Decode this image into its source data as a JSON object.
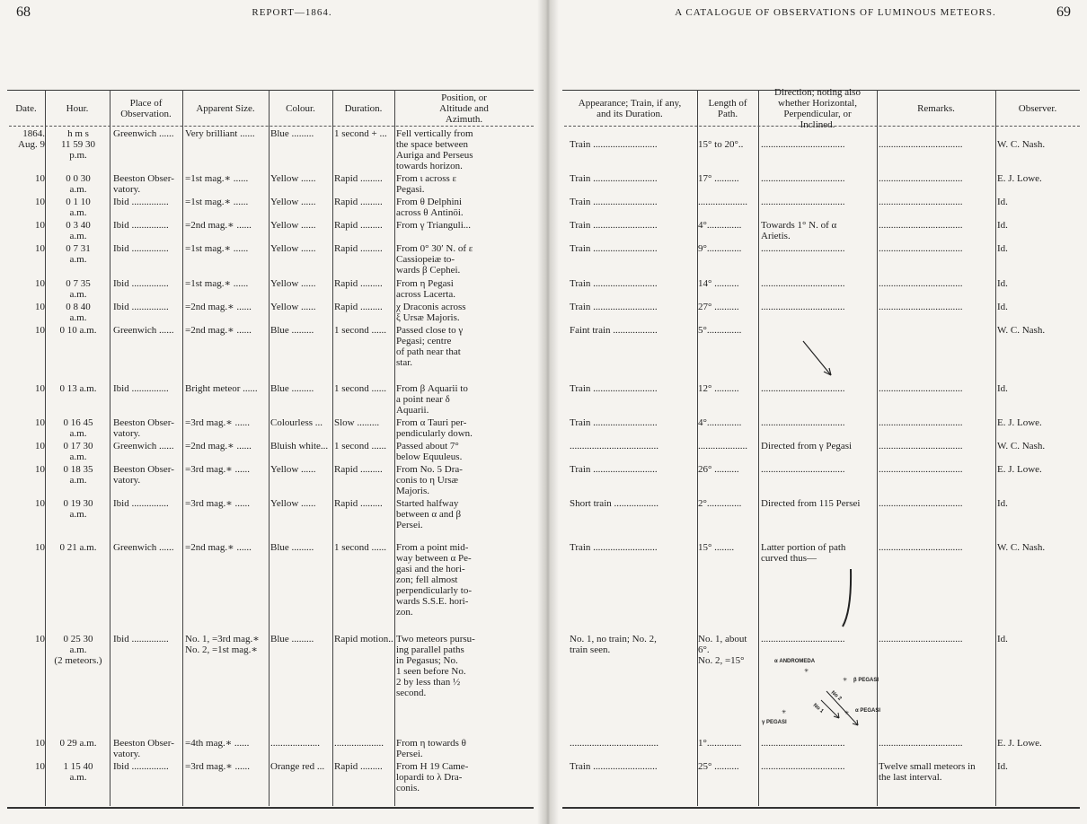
{
  "left_page": {
    "page_number": "68",
    "running_head": "REPORT—1864.",
    "headers": [
      "Date.",
      "Hour.",
      "Place of\nObservation.",
      "Apparent Size.",
      "Colour.",
      "Duration.",
      "Position, or\nAltitude and\nAzimuth."
    ],
    "rows": [
      {
        "date": "1864.\nAug. 9",
        "hour": "h  m  s\n11 59 30\np.m.",
        "place": "Greenwich ......",
        "size": "Very brilliant ......",
        "colour": "Blue  .........",
        "duration": "1 second + ...",
        "position": "Fell vertically from\nthe space between\nAuriga and Perseus\ntowards horizon."
      },
      {
        "date": "10",
        "hour": "0  0 30\na.m.",
        "place": "Beeston Obser-\nvatory.",
        "size": "=1st mag.∗ ......",
        "colour": "Yellow ......",
        "duration": "Rapid .........",
        "position": "From ι across ε\nPegasi."
      },
      {
        "date": "10",
        "hour": "0  1 10\na.m.",
        "place": "Ibid ...............",
        "size": "=1st mag.∗ ......",
        "colour": "Yellow ......",
        "duration": "Rapid .........",
        "position": "From θ Delphini\nacross θ Antinöi."
      },
      {
        "date": "10",
        "hour": "0  3 40\na.m.",
        "place": "Ibid ...............",
        "size": "=2nd mag.∗ ......",
        "colour": "Yellow ......",
        "duration": "Rapid .........",
        "position": "From γ Trianguli..."
      },
      {
        "date": "10",
        "hour": "0  7 31\na.m.",
        "place": "Ibid ...............",
        "size": "=1st mag.∗ ......",
        "colour": "Yellow ......",
        "duration": "Rapid .........",
        "position": "From 0° 30′ N. of ε\nCassiopeiæ to-\nwards β Cephei."
      },
      {
        "date": "10",
        "hour": "0  7 35\na.m.",
        "place": "Ibid ...............",
        "size": "=1st mag.∗ ......",
        "colour": "Yellow ......",
        "duration": "Rapid .........",
        "position": "From η Pegasi\nacross Lacerta."
      },
      {
        "date": "10",
        "hour": "0  8 40\na.m.",
        "place": "Ibid ...............",
        "size": "=2nd mag.∗ ......",
        "colour": "Yellow ......",
        "duration": "Rapid .........",
        "position": "χ Draconis across\nξ Ursæ Majoris."
      },
      {
        "date": "10",
        "hour": "0 10  a.m.",
        "place": "Greenwich ......",
        "size": "=2nd mag.∗ ......",
        "colour": "Blue  .........",
        "duration": "1 second ......",
        "position": "Passed close to γ\nPegasi; centre\nof path near that\nstar."
      },
      {
        "date": "10",
        "hour": "0 13  a.m.",
        "place": "Ibid ...............",
        "size": "Bright meteor ......",
        "colour": "Blue  .........",
        "duration": "1 second ......",
        "position": "From β Aquarii to\na point near δ\nAquarii."
      },
      {
        "date": "10",
        "hour": "0 16 45\na.m.",
        "place": "Beeston Obser-\nvatory.",
        "size": "=3rd mag.∗ ......",
        "colour": "Colourless ...",
        "duration": "Slow .........",
        "position": "From α Tauri per-\npendicularly down."
      },
      {
        "date": "10",
        "hour": "0 17 30\na.m.",
        "place": "Greenwich ......",
        "size": "=2nd mag.∗ ......",
        "colour": "Bluish white...",
        "duration": "1 second ......",
        "position": "Passed about 7°\nbelow Equuleus."
      },
      {
        "date": "10",
        "hour": "0 18 35\na.m.",
        "place": "Beeston Obser-\nvatory.",
        "size": "=3rd mag.∗ ......",
        "colour": "Yellow ......",
        "duration": "Rapid .........",
        "position": "From No. 5 Dra-\nconis to η Ursæ\nMajoris."
      },
      {
        "date": "10",
        "hour": "0 19 30\na.m.",
        "place": "Ibid ...............",
        "size": "=3rd mag.∗ ......",
        "colour": "Yellow ......",
        "duration": "Rapid .........",
        "position": "Started halfway\nbetween α and β\nPersei."
      },
      {
        "date": "10",
        "hour": "0 21  a.m.",
        "place": "Greenwich ......",
        "size": "=2nd mag.∗ ......",
        "colour": "Blue  .........",
        "duration": "1 second ......",
        "position": "From a point mid-\nway between α Pe-\ngasi and the hori-\nzon; fell almost\nperpendicularly to-\nwards S.S.E. hori-\nzon."
      },
      {
        "date": "10",
        "hour": "0 25 30\na.m.\n(2 meteors.)",
        "place": "Ibid ...............",
        "size": "No. 1, =3rd mag.∗\nNo. 2, =1st mag.∗",
        "colour": "Blue  .........",
        "duration": "Rapid motion..",
        "position": "Two meteors pursu-\ning parallel paths\nin Pegasus; No.\n1 seen before No.\n2 by less than ½\nsecond."
      },
      {
        "date": "10",
        "hour": "0 29  a.m.",
        "place": "Beeston Obser-\nvatory.",
        "size": "=4th mag.∗ ......",
        "colour": "....................",
        "duration": "....................",
        "position": "From η towards θ\nPersei."
      },
      {
        "date": "10",
        "hour": "1 15 40\na.m.",
        "place": "Ibid ...............",
        "size": "=3rd mag.∗ ......",
        "colour": "Orange red ...",
        "duration": "Rapid .........",
        "position": "From H 19 Came-\nlopardi to λ Dra-\nconis."
      }
    ]
  },
  "right_page": {
    "page_number": "69",
    "running_head": "A CATALOGUE OF OBSERVATIONS OF LUMINOUS METEORS.",
    "headers": [
      "Appearance; Train, if any,\nand its Duration.",
      "Length of\nPath.",
      "Direction; noting also\nwhether Horizontal,\nPerpendicular, or\nInclined.",
      "Remarks.",
      "Observer."
    ],
    "rows": [
      {
        "appearance": "Train ..........................",
        "length": "15° to 20°..",
        "direction": "..................................",
        "remarks": "..................................",
        "observer": "W. C. Nash."
      },
      {
        "appearance": "Train ..........................",
        "length": "17° ..........",
        "direction": "..................................",
        "remarks": "..................................",
        "observer": "E. J. Lowe."
      },
      {
        "appearance": "Train ..........................",
        "length": "....................",
        "direction": "..................................",
        "remarks": "..................................",
        "observer": "Id."
      },
      {
        "appearance": "Train ..........................",
        "length": "4°..............",
        "direction": "Towards 1° N. of α\nArietis.",
        "remarks": "..................................",
        "observer": "Id."
      },
      {
        "appearance": "Train ..........................",
        "length": "9°..............",
        "direction": "..................................",
        "remarks": "..................................",
        "observer": "Id."
      },
      {
        "appearance": "Train ..........................",
        "length": "14° ..........",
        "direction": "..................................",
        "remarks": "..................................",
        "observer": "Id."
      },
      {
        "appearance": "Train ..........................",
        "length": "27° ..........",
        "direction": "..................................",
        "remarks": "..................................",
        "observer": "Id."
      },
      {
        "appearance": "Faint train ..................",
        "length": "5°..............",
        "direction": "",
        "remarks": "",
        "observer": "W. C. Nash."
      },
      {
        "appearance": "Train ..........................",
        "length": "12° ..........",
        "direction": "..................................",
        "remarks": "..................................",
        "observer": "Id."
      },
      {
        "appearance": "Train ..........................",
        "length": "4°..............",
        "direction": "..................................",
        "remarks": "..................................",
        "observer": "E. J. Lowe."
      },
      {
        "appearance": "....................................",
        "length": "....................",
        "direction": "Directed from γ Pegasi",
        "remarks": "..................................",
        "observer": "W. C. Nash."
      },
      {
        "appearance": "Train ..........................",
        "length": "26° ..........",
        "direction": "..................................",
        "remarks": "..................................",
        "observer": "E. J. Lowe."
      },
      {
        "appearance": "Short train ..................",
        "length": "2°..............",
        "direction": "Directed from 115 Persei",
        "remarks": "..................................",
        "observer": "Id."
      },
      {
        "appearance": "Train ..........................",
        "length": "15° ........",
        "direction": "Latter portion of path\ncurved thus—",
        "remarks": "..................................",
        "observer": "W. C. Nash."
      },
      {
        "appearance": "No. 1, no train; No. 2,\ntrain seen.",
        "length": "No. 1, about\n6°.\nNo. 2, =15°",
        "direction": "..................................",
        "remarks": "..................................",
        "observer": "Id."
      },
      {
        "appearance": "....................................",
        "length": "1°..............",
        "direction": "..................................",
        "remarks": "..................................",
        "observer": "E. J. Lowe."
      },
      {
        "appearance": "Train ..........................",
        "length": "25° ..........",
        "direction": "..................................",
        "remarks": "Twelve small meteors in\nthe last interval.",
        "observer": "Id."
      }
    ],
    "star_chart": {
      "labels": [
        "α ANDROMEDA",
        "β PEGASI",
        "α PEGASI",
        "γ PEGASI",
        "No 1",
        "No 2"
      ]
    }
  }
}
